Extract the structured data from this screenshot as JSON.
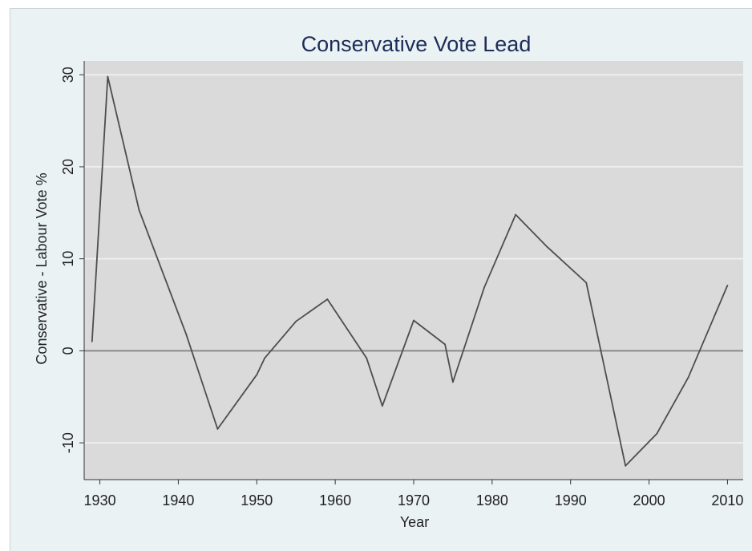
{
  "chart_data": {
    "type": "line",
    "title": "Conservative Vote Lead",
    "xlabel": "Year",
    "ylabel": "Conservative - Labour Vote %",
    "xlim": [
      1928,
      2012
    ],
    "ylim": [
      -14,
      31.5
    ],
    "xticks": [
      1930,
      1940,
      1950,
      1960,
      1970,
      1980,
      1990,
      2000,
      2010
    ],
    "xtick_labels": [
      "1930",
      "1940",
      "1950",
      "1960",
      "1970",
      "1980",
      "1990",
      "2000",
      "2010"
    ],
    "yticks": [
      -10,
      0,
      10,
      20,
      30
    ],
    "ytick_labels": [
      "-10",
      "0",
      "10",
      "20",
      "30"
    ],
    "grid": true,
    "reference_line_y": 0,
    "series": [
      {
        "x": [
          1929,
          1931,
          1935,
          1941,
          1945,
          1950,
          1951,
          1955,
          1959,
          1964,
          1966,
          1970,
          1974,
          1975,
          1979,
          1983,
          1987,
          1992,
          1997,
          2001,
          2005,
          2010
        ],
        "y": [
          1.0,
          29.8,
          15.3,
          1.8,
          -8.5,
          -2.6,
          -0.8,
          3.2,
          5.6,
          -0.8,
          -6.0,
          3.3,
          0.7,
          -3.4,
          6.9,
          14.8,
          11.3,
          7.4,
          -12.5,
          -9.0,
          -2.9,
          7.1
        ]
      }
    ],
    "colors": {
      "plot_background": "#dadada",
      "frame_background": "#eaf2f3",
      "line": "#4d4d4d",
      "gridline": "#eeeeee",
      "title": "#1c2d5a"
    }
  }
}
